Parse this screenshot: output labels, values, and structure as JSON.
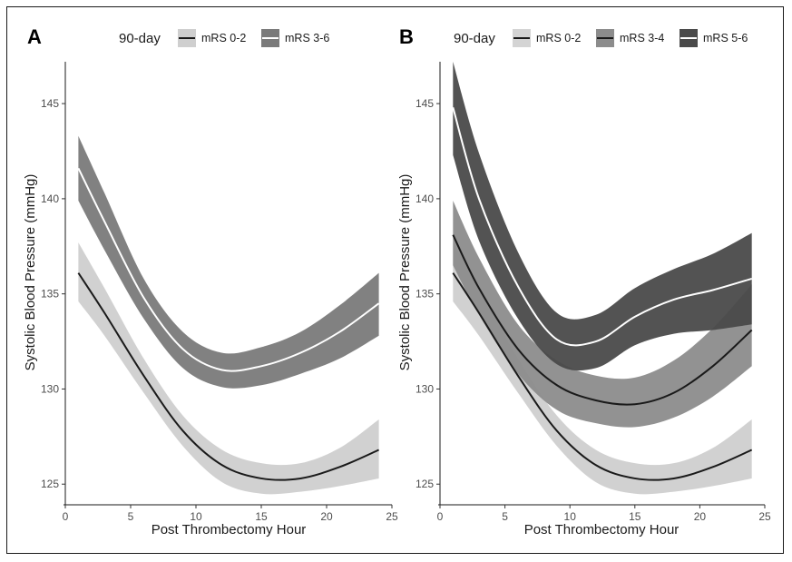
{
  "chart_data": [
    {
      "panel": "A",
      "type": "line",
      "legend": {
        "title": "90-day",
        "position": "top"
      },
      "xlabel": "Post Thrombectomy Hour",
      "ylabel": "Systolic Blood Pressure (mmHg)",
      "xlim": [
        0,
        25
      ],
      "ylim": [
        124.2,
        147.2
      ],
      "xticks": [
        0,
        5,
        10,
        15,
        20,
        25
      ],
      "yticks": [
        125,
        130,
        135,
        140,
        145
      ],
      "grid": false,
      "x": [
        1,
        3,
        6,
        9,
        12,
        15,
        18,
        21,
        24
      ],
      "series": [
        {
          "name": "mRS 0-2",
          "line_color": "#1a1a1a",
          "band_color": "#cfcfcf",
          "legend_fill": "#cfcfcf",
          "mean": [
            136.1,
            134.0,
            130.7,
            127.8,
            126.0,
            125.3,
            125.3,
            125.9,
            126.8
          ],
          "lower": [
            134.6,
            132.8,
            129.8,
            127.0,
            125.1,
            124.5,
            124.6,
            124.9,
            125.3
          ],
          "upper": [
            137.7,
            135.3,
            131.6,
            128.6,
            126.8,
            126.1,
            126.1,
            126.9,
            128.4
          ]
        },
        {
          "name": "mRS 3-6",
          "line_color": "#ffffff",
          "band_color": "#7a7a7a",
          "legend_fill": "#7a7a7a",
          "mean": [
            141.6,
            138.8,
            134.8,
            132.1,
            131.0,
            131.2,
            131.9,
            133.0,
            134.5
          ],
          "lower": [
            139.9,
            137.3,
            133.7,
            131.1,
            130.1,
            130.2,
            130.8,
            131.6,
            132.8
          ],
          "upper": [
            143.3,
            140.3,
            135.8,
            133.0,
            131.9,
            132.2,
            133.0,
            134.4,
            136.1
          ]
        }
      ]
    },
    {
      "panel": "B",
      "type": "line",
      "legend": {
        "title": "90-day",
        "position": "top"
      },
      "xlabel": "Post Thrombectomy Hour",
      "ylabel": "Systolic Blood Pressure (mmHg)",
      "xlim": [
        0,
        25
      ],
      "ylim": [
        124.2,
        147.2
      ],
      "xticks": [
        0,
        5,
        10,
        15,
        20,
        25
      ],
      "yticks": [
        125,
        130,
        135,
        140,
        145
      ],
      "grid": false,
      "x": [
        1,
        3,
        6,
        9,
        12,
        15,
        18,
        21,
        24
      ],
      "series": [
        {
          "name": "mRS 0-2",
          "line_color": "#1a1a1a",
          "band_color": "#cfcfcf",
          "legend_fill": "#d4d4d4",
          "mean": [
            136.1,
            134.0,
            130.7,
            127.8,
            126.0,
            125.3,
            125.3,
            125.9,
            126.8
          ],
          "lower": [
            134.6,
            132.8,
            129.8,
            127.0,
            125.1,
            124.5,
            124.6,
            124.9,
            125.3
          ],
          "upper": [
            137.7,
            135.3,
            131.6,
            128.6,
            126.8,
            126.1,
            126.1,
            126.9,
            128.4
          ]
        },
        {
          "name": "mRS 3-4",
          "line_color": "#1a1a1a",
          "band_color": "#8c8c8c",
          "legend_fill": "#8c8c8c",
          "mean": [
            138.1,
            135.3,
            132.1,
            130.2,
            129.4,
            129.2,
            129.8,
            131.2,
            133.1
          ],
          "lower": [
            136.5,
            133.9,
            130.8,
            128.9,
            128.2,
            128.0,
            128.5,
            129.6,
            131.2
          ],
          "upper": [
            139.9,
            136.9,
            133.4,
            131.5,
            130.7,
            130.6,
            131.5,
            133.2,
            135.5
          ]
        },
        {
          "name": "mRS 5-6",
          "line_color": "#ffffff",
          "band_color": "#4a4a4a",
          "legend_fill": "#4a4a4a",
          "mean": [
            144.8,
            140.0,
            135.4,
            132.6,
            132.5,
            133.8,
            134.7,
            135.2,
            135.8
          ],
          "lower": [
            142.3,
            137.8,
            133.7,
            131.3,
            131.1,
            132.3,
            132.9,
            133.1,
            133.4
          ],
          "upper": [
            147.2,
            142.4,
            137.2,
            134.0,
            133.9,
            135.3,
            136.3,
            137.1,
            138.2
          ]
        }
      ]
    }
  ]
}
